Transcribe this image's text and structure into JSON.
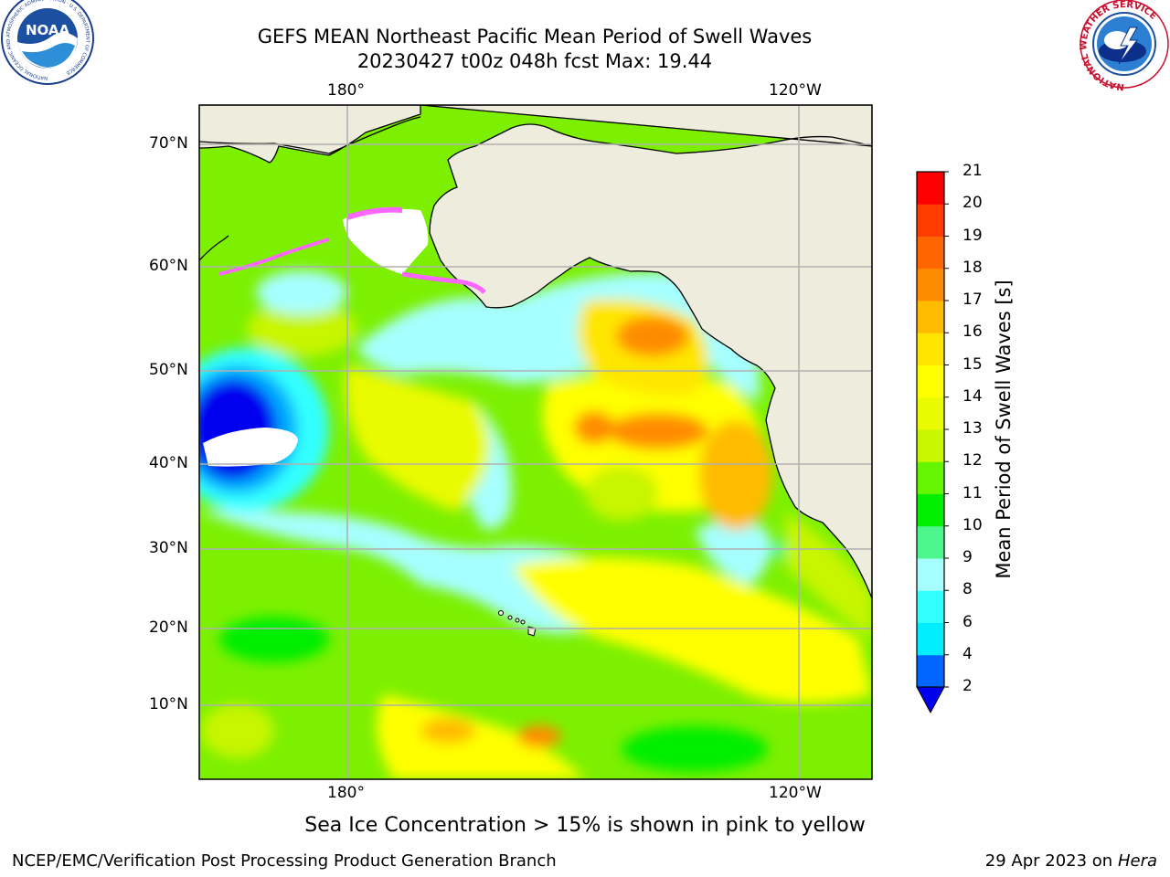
{
  "title": {
    "line1": "GEFS MEAN Northeast Pacific Mean Period of Swell Waves",
    "line2": "20230427 t00z 048h fcst   Max: 19.44"
  },
  "map": {
    "lon_labels_top": [
      "180°",
      "120°W"
    ],
    "lon_labels_bottom": [
      "180°",
      "120°W"
    ],
    "lat_labels": [
      "70°N",
      "60°N",
      "50°N",
      "40°N",
      "30°N",
      "20°N",
      "10°N"
    ],
    "land_color": "#eeecdc",
    "gridline_color": "#b0b0b0"
  },
  "colorbar": {
    "label": "Mean Period of Swell Waves [s]",
    "ticks": [
      "21",
      "20",
      "19",
      "18",
      "17",
      "16",
      "15",
      "14",
      "13",
      "12",
      "11",
      "10",
      "9",
      "8",
      "6",
      "4",
      "2"
    ],
    "colors_bottom_to_top": [
      "#0066ff",
      "#00eeff",
      "#33ffff",
      "#a6ffff",
      "#4df68d",
      "#00ee00",
      "#66f500",
      "#c8f500",
      "#eafa00",
      "#ffff00",
      "#ffe600",
      "#ffbb00",
      "#ff8c00",
      "#ff6600",
      "#ff3d00",
      "#ff0000"
    ],
    "extend_color": "#0000ee"
  },
  "caption": "Sea Ice Concentration > 15% is shown in pink to yellow",
  "footer": {
    "left": "NCEP/EMC/Verification Post Processing Product Generation Branch",
    "right_prefix": "29 Apr 2023 on ",
    "right_host": "Hera"
  },
  "logos": {
    "left": {
      "name": "NOAA",
      "text": "NOAA",
      "ring_text": "NATIONAL OCEANIC AND ATMOSPHERIC ADMINISTRATION · U.S. DEPARTMENT OF COMMERCE"
    },
    "right": {
      "name": "National Weather Service",
      "ring_text": "NATIONAL WEATHER SERVICE"
    }
  }
}
